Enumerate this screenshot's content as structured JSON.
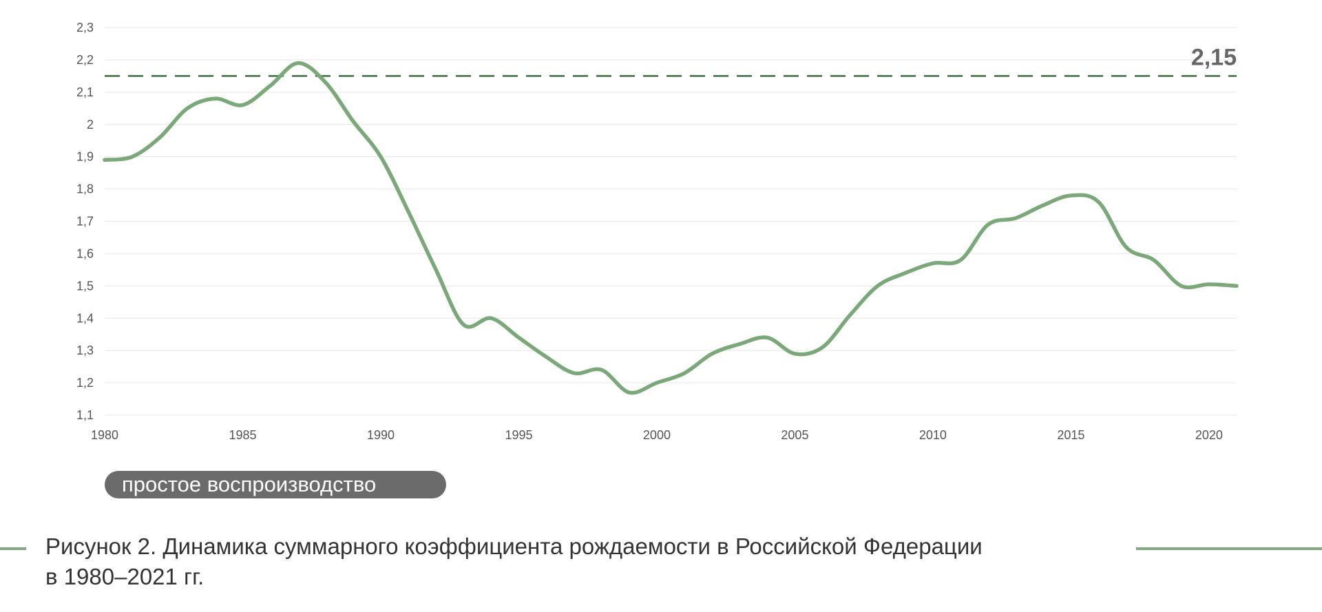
{
  "chart_data": {
    "type": "line",
    "title": "",
    "xlabel": "",
    "ylabel": "",
    "xlim": [
      1980,
      2021
    ],
    "ylim": [
      1.1,
      2.3
    ],
    "y_ticks": [
      "1,1",
      "1,2",
      "1,3",
      "1,4",
      "1,5",
      "1,6",
      "1,7",
      "1,8",
      "1,9",
      "2",
      "2,1",
      "2,2",
      "2,3"
    ],
    "y_tick_values": [
      1.1,
      1.2,
      1.3,
      1.4,
      1.5,
      1.6,
      1.7,
      1.8,
      1.9,
      2.0,
      2.1,
      2.2,
      2.3
    ],
    "x_ticks": [
      "1980",
      "1985",
      "1990",
      "1995",
      "2000",
      "2005",
      "2010",
      "2015",
      "2020"
    ],
    "x_tick_values": [
      1980,
      1985,
      1990,
      1995,
      2000,
      2005,
      2010,
      2015,
      2020
    ],
    "grid": true,
    "reference_line": {
      "value": 2.15,
      "label": "2,15",
      "style": "dashed"
    },
    "series": [
      {
        "x": [
          1980,
          1981,
          1982,
          1983,
          1984,
          1985,
          1986,
          1987,
          1988,
          1989,
          1990,
          1991,
          1992,
          1993,
          1994,
          1995,
          1996,
          1997,
          1998,
          1999,
          2000,
          2001,
          2002,
          2003,
          2004,
          2005,
          2006,
          2007,
          2008,
          2009,
          2010,
          2011,
          2012,
          2013,
          2014,
          2015,
          2016,
          2017,
          2018,
          2019,
          2020,
          2021
        ],
        "values": [
          1.89,
          1.9,
          1.96,
          2.05,
          2.08,
          2.06,
          2.12,
          2.19,
          2.13,
          2.01,
          1.9,
          1.73,
          1.55,
          1.38,
          1.4,
          1.34,
          1.28,
          1.23,
          1.24,
          1.17,
          1.2,
          1.23,
          1.29,
          1.32,
          1.34,
          1.29,
          1.31,
          1.41,
          1.5,
          1.54,
          1.57,
          1.58,
          1.69,
          1.71,
          1.75,
          1.78,
          1.76,
          1.62,
          1.58,
          1.5,
          1.505,
          1.5
        ]
      }
    ],
    "colors": {
      "line": "#7aa878",
      "reference": "#3f6b40",
      "grid": "#e6e6e6"
    }
  },
  "legend": {
    "label": "простое воспроизводство",
    "color": "#6b6b6b"
  },
  "caption": {
    "line1": "Рисунок 2. Динамика суммарного коэффициента рождаемости в Российской Федерации",
    "line2": "в 1980–2021 гг."
  }
}
